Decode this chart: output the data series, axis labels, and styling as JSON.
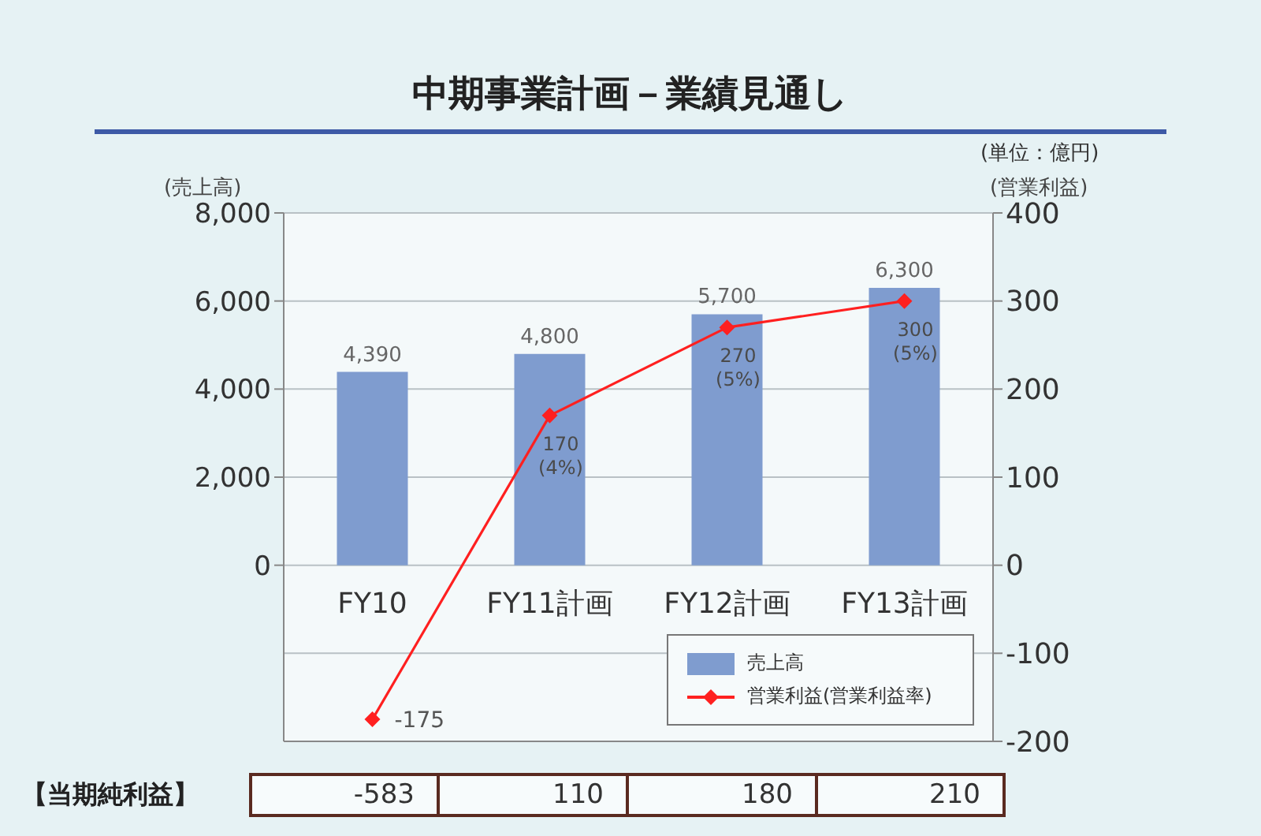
{
  "chart_data": [
    {
      "type": "bar",
      "title": "中期事業計画－業績見通し",
      "ylabel": "(売上高)",
      "y2label": "(営業利益)",
      "annotations": [
        "(単位：億円)"
      ],
      "categories": [
        "FY10",
        "FY11計画",
        "FY12計画",
        "FY13計画"
      ],
      "series": [
        {
          "name": "売上高",
          "type": "bar",
          "color": "#7f9ccf",
          "values": [
            4390,
            4800,
            5700,
            6300
          ],
          "value_labels": [
            "4,390",
            "4,800",
            "5,700",
            "6,300"
          ]
        },
        {
          "name": "営業利益(営業利益率)",
          "type": "line",
          "axis": "y2",
          "color": "#ff2020",
          "values": [
            -175,
            170,
            270,
            300
          ],
          "value_labels": [
            "-175",
            "170\n(4%)",
            "270\n(5%)",
            "300\n(5%)"
          ]
        }
      ],
      "ylim": [
        -4000,
        8000
      ],
      "yticks": [
        0,
        {
          "value": 2000,
          "label": "2,000"
        },
        {
          "value": 4000,
          "label": "4,000"
        },
        {
          "value": 6000,
          "label": "6,000"
        },
        {
          "value": 8000,
          "label": "8,000"
        }
      ],
      "y2lim": [
        -200,
        400
      ],
      "y2ticks": [
        -200,
        -100,
        0,
        100,
        200,
        300,
        400
      ],
      "grid": "y",
      "legend": "bottom right",
      "marker": "diamond"
    },
    {
      "type": "other",
      "title": "【当期純利益】",
      "values": [
        -583,
        110,
        180,
        210
      ],
      "data_labels": true
    }
  ]
}
